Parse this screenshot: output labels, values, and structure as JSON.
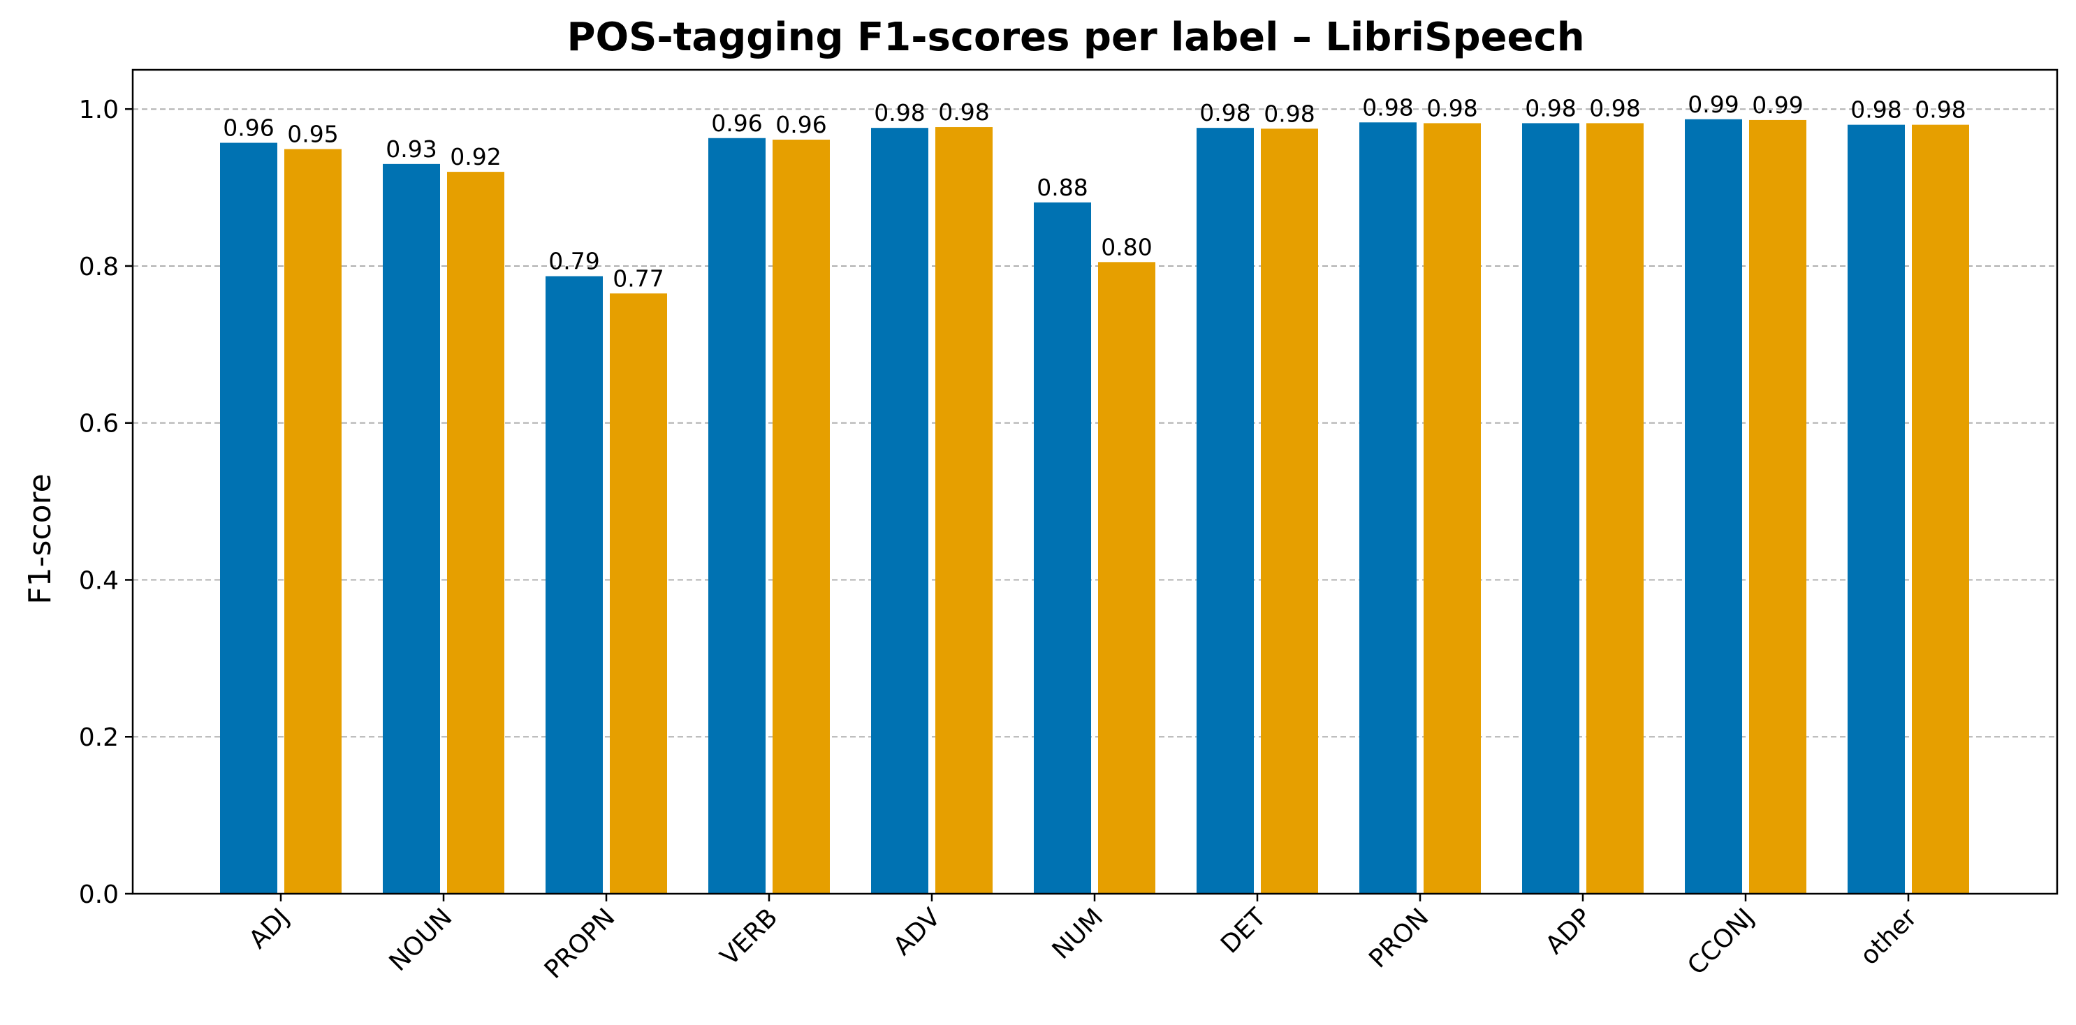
{
  "chart_data": {
    "type": "bar",
    "title": "POS-tagging F1-scores per label – LibriSpeech",
    "xlabel": "",
    "ylabel": "F1-score",
    "ylim": [
      0,
      1.05
    ],
    "yticks": [
      "0.0",
      "0.2",
      "0.4",
      "0.6",
      "0.8",
      "1.0"
    ],
    "grid": "y-dashed",
    "categories": [
      "ADJ",
      "NOUN",
      "PROPN",
      "VERB",
      "ADV",
      "NUM",
      "DET",
      "PRON",
      "ADP",
      "CCONJ",
      "other"
    ],
    "series": [
      {
        "color": "#0072B2",
        "values": [
          0.957,
          0.93,
          0.787,
          0.963,
          0.976,
          0.881,
          0.976,
          0.983,
          0.982,
          0.987,
          0.98
        ],
        "labels": [
          "0.96",
          "0.93",
          "0.79",
          "0.96",
          "0.98",
          "0.88",
          "0.98",
          "0.98",
          "0.98",
          "0.99",
          "0.98"
        ]
      },
      {
        "color": "#E69F00",
        "values": [
          0.949,
          0.92,
          0.765,
          0.961,
          0.977,
          0.805,
          0.975,
          0.982,
          0.982,
          0.986,
          0.98
        ],
        "labels": [
          "0.95",
          "0.92",
          "0.77",
          "0.96",
          "0.98",
          "0.80",
          "0.98",
          "0.98",
          "0.98",
          "0.99",
          "0.98"
        ]
      }
    ]
  }
}
